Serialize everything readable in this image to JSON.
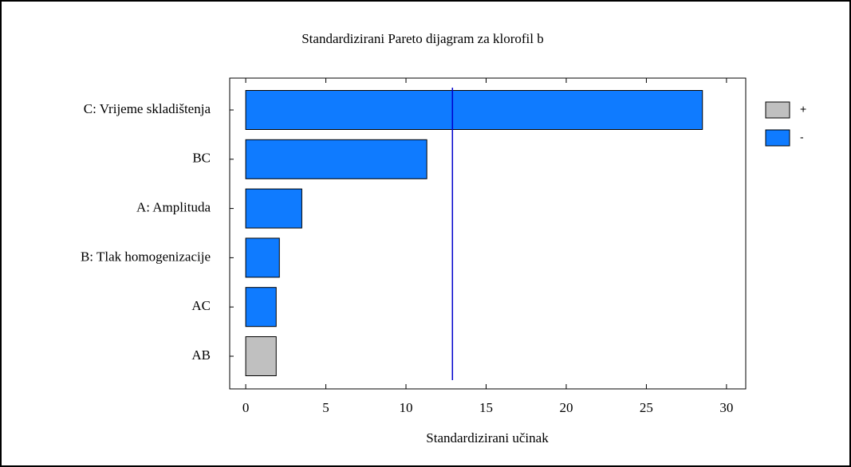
{
  "chart_data": {
    "type": "bar",
    "orientation": "horizontal",
    "title": "Standardizirani  Pareto dijagram  za klorofil  b",
    "x_label": "Standardizirani  učinak",
    "categories": [
      "C: Vrijeme  skladištenja",
      "BC",
      "A: Amplituda",
      "B: Tlak homogenizacije",
      "AC",
      "AB"
    ],
    "series": [
      {
        "name": "+",
        "color": "#c0c0c0",
        "values": [
          null,
          null,
          null,
          null,
          null,
          1.9
        ]
      },
      {
        "name": "-",
        "color": "#0f7bff",
        "values": [
          28.5,
          11.3,
          3.5,
          2.1,
          1.9,
          null
        ]
      }
    ],
    "reference_line": 12.9,
    "reference_color": "#0000cc",
    "xlim": [
      -1,
      31.2
    ],
    "xticks": [
      0,
      5,
      10,
      15,
      20,
      25,
      30
    ]
  }
}
